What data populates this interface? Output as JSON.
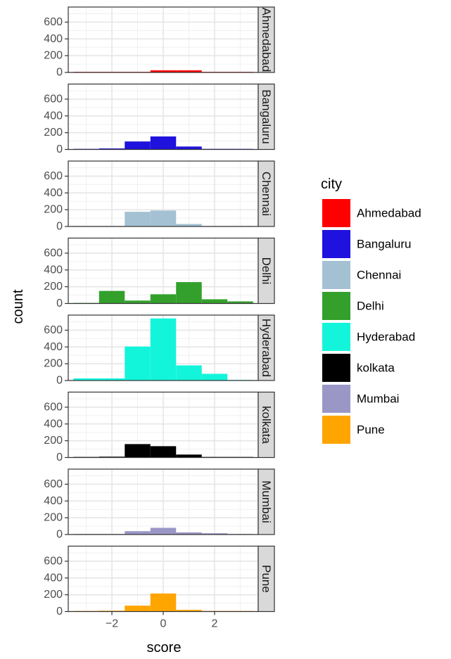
{
  "chart_data": {
    "type": "bar",
    "subtype": "faceted-histogram",
    "xlabel": "score",
    "ylabel": "count",
    "xlim": [
      -3.7,
      3.7
    ],
    "ylim": [
      0,
      780
    ],
    "x_ticks": [
      -2,
      0,
      2
    ],
    "x_tick_labels": [
      "−2",
      "0",
      "2"
    ],
    "y_ticks": [
      0,
      200,
      400,
      600
    ],
    "bin_edges": [
      -3.5,
      -2.5,
      -1.5,
      -0.5,
      0.5,
      1.5,
      2.5,
      3.5
    ],
    "grid": true,
    "legend": {
      "title": "city",
      "position": "right"
    },
    "series": [
      {
        "name": "Ahmedabad",
        "color": "#FF0000",
        "values": [
          0,
          1,
          3,
          25,
          25,
          3,
          0
        ]
      },
      {
        "name": "Bangaluru",
        "color": "#1F12DE",
        "values": [
          2,
          12,
          95,
          155,
          35,
          5,
          1
        ]
      },
      {
        "name": "Chennai",
        "color": "#A3C1D3",
        "values": [
          2,
          5,
          175,
          190,
          30,
          3,
          0
        ]
      },
      {
        "name": "Delhi",
        "color": "#33A02C",
        "values": [
          5,
          150,
          35,
          110,
          255,
          50,
          25
        ]
      },
      {
        "name": "Hyderabad",
        "color": "#13F5DB",
        "values": [
          25,
          25,
          405,
          740,
          180,
          80,
          5
        ]
      },
      {
        "name": "kolkata",
        "color": "#000000",
        "values": [
          2,
          10,
          160,
          135,
          35,
          5,
          1
        ]
      },
      {
        "name": "Mumbai",
        "color": "#9A97C7",
        "values": [
          1,
          5,
          40,
          80,
          25,
          15,
          1
        ]
      },
      {
        "name": "Pune",
        "color": "#FFA500",
        "values": [
          1,
          10,
          70,
          215,
          20,
          5,
          2
        ]
      }
    ]
  }
}
